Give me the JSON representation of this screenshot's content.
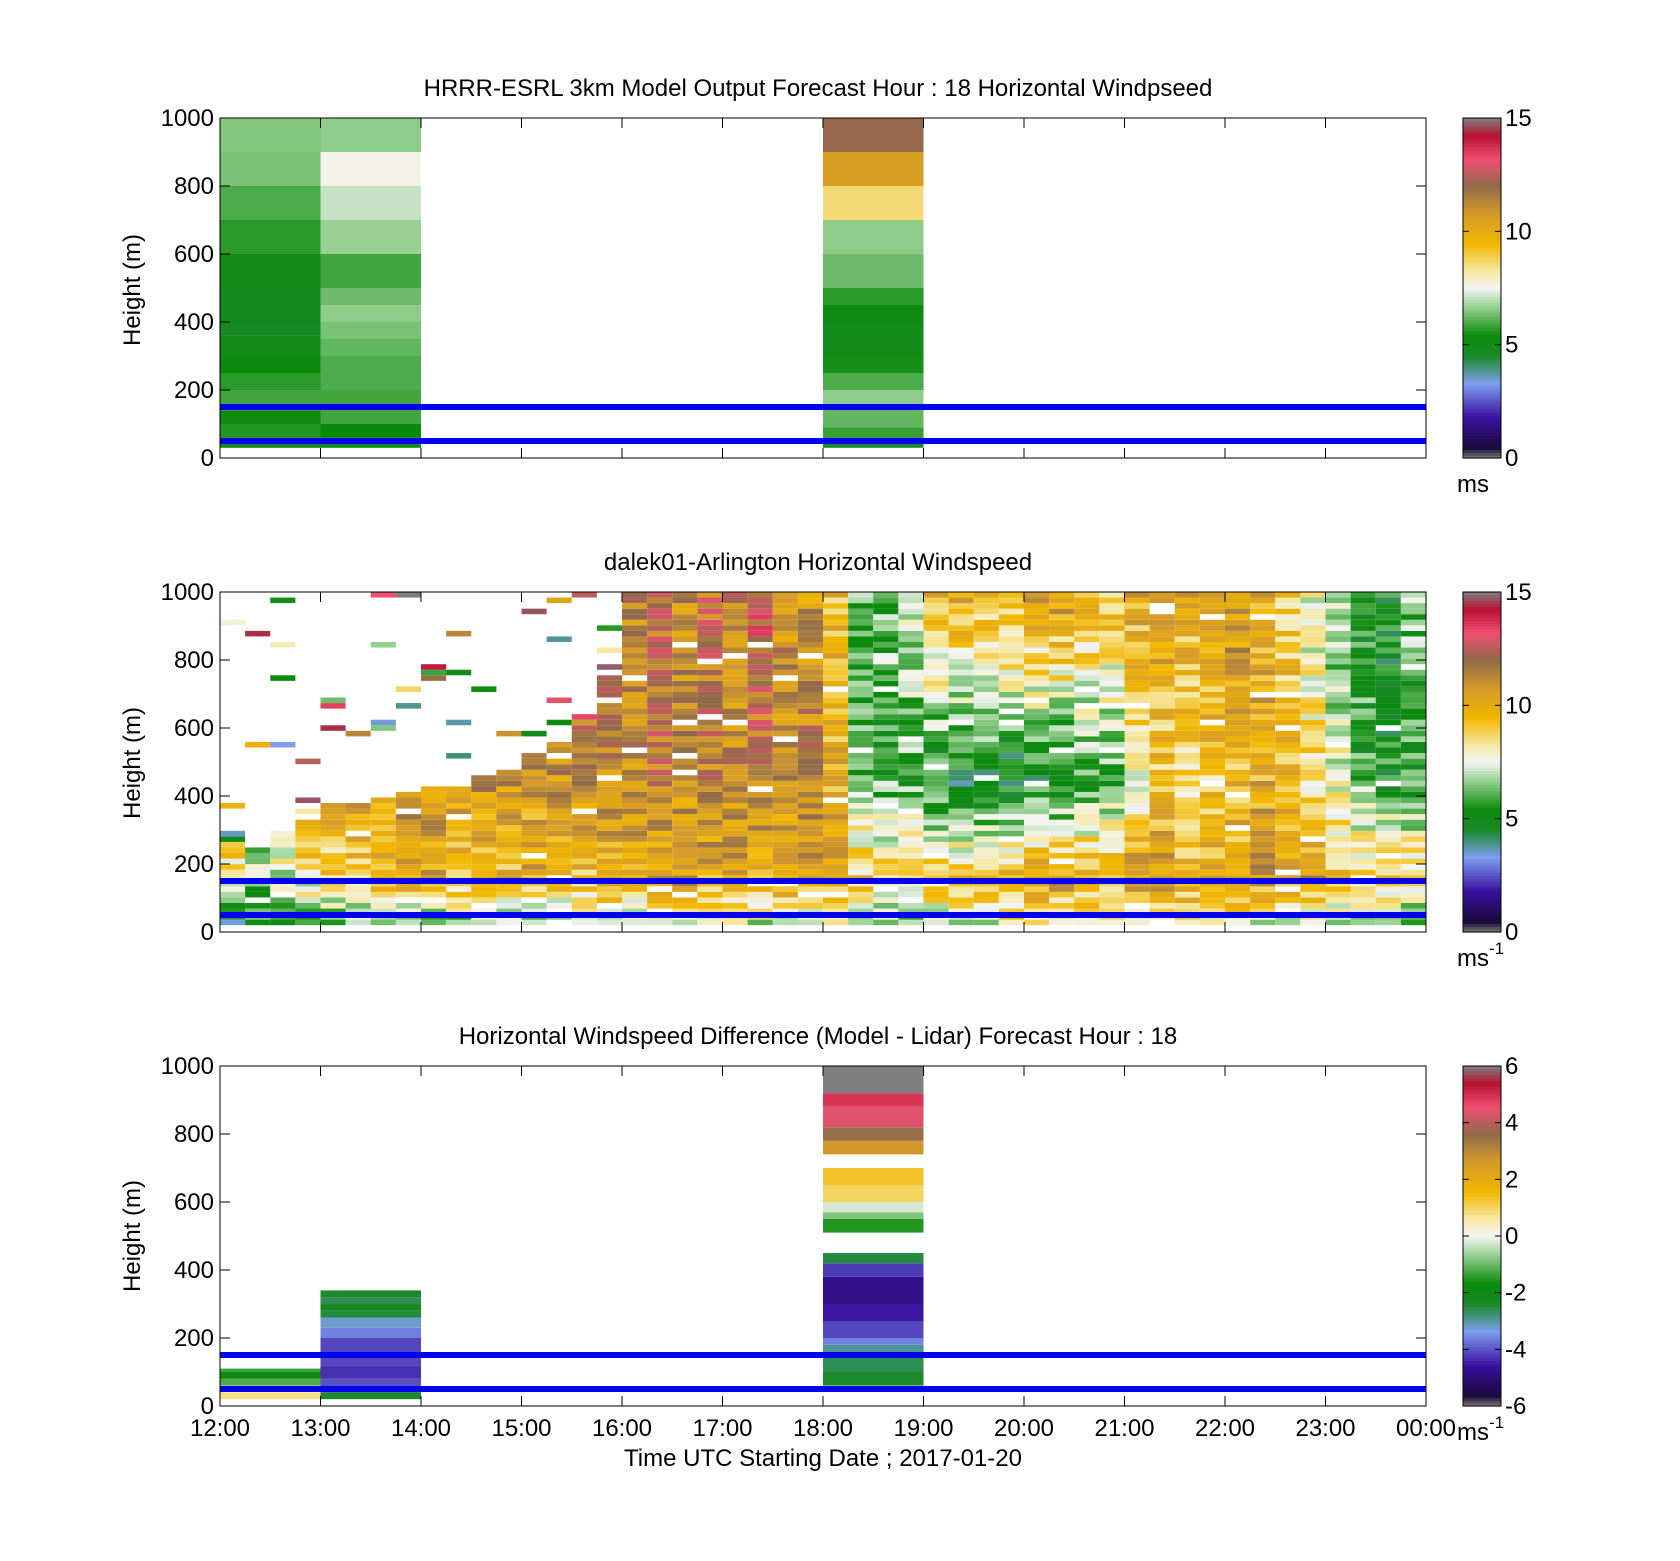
{
  "figure": {
    "xlabel": "Time UTC  Starting Date ; 2017-01-20",
    "x_ticks": [
      "12:00",
      "13:00",
      "14:00",
      "15:00",
      "16:00",
      "17:00",
      "18:00",
      "19:00",
      "20:00",
      "21:00",
      "22:00",
      "23:00",
      "00:00"
    ]
  },
  "colormap": {
    "name": "windspeed",
    "stops": [
      {
        "f": 0.0,
        "color": "#7f7f7f"
      },
      {
        "f": 0.03,
        "color": "#1a0a3a"
      },
      {
        "f": 0.12,
        "color": "#3a10a0"
      },
      {
        "f": 0.22,
        "color": "#7d9ef0"
      },
      {
        "f": 0.3,
        "color": "#1b8a2a"
      },
      {
        "f": 0.36,
        "color": "#0a8a0a"
      },
      {
        "f": 0.45,
        "color": "#9ed49a"
      },
      {
        "f": 0.5,
        "color": "#f3f3f3"
      },
      {
        "f": 0.55,
        "color": "#f5e9a6"
      },
      {
        "f": 0.63,
        "color": "#f2b700"
      },
      {
        "f": 0.72,
        "color": "#d49a2a"
      },
      {
        "f": 0.8,
        "color": "#8f6a4a"
      },
      {
        "f": 0.88,
        "color": "#ef4f70"
      },
      {
        "f": 0.95,
        "color": "#b81030"
      },
      {
        "f": 1.0,
        "color": "#7f7f7f"
      }
    ]
  },
  "reference_lines": {
    "heights_m": [
      50,
      150
    ],
    "color": "#0000ee"
  },
  "chart_data": [
    {
      "type": "heatmap",
      "title": "HRRR-ESRL 3km Model Output   Forecast Hour : 18 Horizontal Windpseed",
      "ylabel": "Height (m)",
      "xlim": [
        0,
        12
      ],
      "ylim": [
        0,
        1000
      ],
      "y_ticks": [
        "0",
        "200",
        "400",
        "600",
        "800",
        "1000"
      ],
      "colorbar": {
        "min": 0,
        "max": 15,
        "ticks": [
          "0",
          "5",
          "10",
          "15"
        ],
        "unit": "ms",
        "unit_sup": ""
      },
      "columns": [
        {
          "t0": 0,
          "t1": 1,
          "cells": [
            {
              "h0": 30,
              "h1": 60,
              "v": 4.9
            },
            {
              "h0": 60,
              "h1": 100,
              "v": 5.6
            },
            {
              "h0": 100,
              "h1": 140,
              "v": 5.2
            },
            {
              "h0": 140,
              "h1": 200,
              "v": 5.9
            },
            {
              "h0": 200,
              "h1": 250,
              "v": 5.7
            },
            {
              "h0": 250,
              "h1": 300,
              "v": 5.3
            },
            {
              "h0": 300,
              "h1": 360,
              "v": 5.0
            },
            {
              "h0": 360,
              "h1": 400,
              "v": 4.7
            },
            {
              "h0": 400,
              "h1": 500,
              "v": 4.8
            },
            {
              "h0": 500,
              "h1": 600,
              "v": 5.0
            },
            {
              "h0": 600,
              "h1": 700,
              "v": 5.7
            },
            {
              "h0": 700,
              "h1": 800,
              "v": 6.0
            },
            {
              "h0": 800,
              "h1": 900,
              "v": 6.4
            },
            {
              "h0": 900,
              "h1": 1000,
              "v": 6.5
            }
          ]
        },
        {
          "t0": 1,
          "t1": 2,
          "cells": [
            {
              "h0": 30,
              "h1": 60,
              "v": 4.9
            },
            {
              "h0": 60,
              "h1": 100,
              "v": 5.4
            },
            {
              "h0": 100,
              "h1": 200,
              "v": 5.9
            },
            {
              "h0": 200,
              "h1": 300,
              "v": 6.0
            },
            {
              "h0": 300,
              "h1": 350,
              "v": 6.2
            },
            {
              "h0": 350,
              "h1": 400,
              "v": 6.4
            },
            {
              "h0": 400,
              "h1": 450,
              "v": 6.6
            },
            {
              "h0": 450,
              "h1": 500,
              "v": 6.3
            },
            {
              "h0": 500,
              "h1": 600,
              "v": 5.9
            },
            {
              "h0": 600,
              "h1": 700,
              "v": 6.7
            },
            {
              "h0": 700,
              "h1": 800,
              "v": 7.1
            },
            {
              "h0": 800,
              "h1": 900,
              "v": 7.6
            },
            {
              "h0": 900,
              "h1": 1000,
              "v": 6.6
            }
          ]
        },
        {
          "t0": 6,
          "t1": 7,
          "cells": [
            {
              "h0": 30,
              "h1": 50,
              "v": 4.6
            },
            {
              "h0": 50,
              "h1": 90,
              "v": 5.8
            },
            {
              "h0": 90,
              "h1": 150,
              "v": 6.2
            },
            {
              "h0": 150,
              "h1": 200,
              "v": 6.6
            },
            {
              "h0": 200,
              "h1": 250,
              "v": 6.0
            },
            {
              "h0": 250,
              "h1": 300,
              "v": 5.5
            },
            {
              "h0": 300,
              "h1": 400,
              "v": 4.9
            },
            {
              "h0": 400,
              "h1": 450,
              "v": 5.2
            },
            {
              "h0": 450,
              "h1": 500,
              "v": 5.7
            },
            {
              "h0": 500,
              "h1": 600,
              "v": 6.3
            },
            {
              "h0": 600,
              "h1": 700,
              "v": 6.6
            },
            {
              "h0": 700,
              "h1": 800,
              "v": 8.6
            },
            {
              "h0": 800,
              "h1": 900,
              "v": 10.6
            },
            {
              "h0": 900,
              "h1": 1000,
              "v": 12.1
            }
          ]
        }
      ]
    },
    {
      "type": "heatmap",
      "title": "dalek01-Arlington  Horizontal Windspeed",
      "ylabel": "Height (m)",
      "xlim": [
        0,
        12
      ],
      "ylim": [
        0,
        1000
      ],
      "y_ticks": [
        "0",
        "200",
        "400",
        "600",
        "800",
        "1000"
      ],
      "colorbar": {
        "min": 0,
        "max": 15,
        "ticks": [
          "0",
          "5",
          "10",
          "15"
        ],
        "unit": "ms",
        "unit_sup": "-1"
      },
      "time_step_h": 0.25,
      "profiles": [
        {
          "t": 0.0,
          "top": 300,
          "v": [
            4.5,
            5.0,
            7.5,
            9.0,
            1.0
          ]
        },
        {
          "t": 0.25,
          "top": 250,
          "v": [
            5.0,
            6.5,
            8.5,
            9.5
          ]
        },
        {
          "t": 0.5,
          "top": 300,
          "v": [
            5.0,
            7.0,
            9.5,
            10.0
          ]
        },
        {
          "t": 0.75,
          "top": 330,
          "v": [
            5.5,
            8.0,
            10.5,
            10.0
          ]
        },
        {
          "t": 1.0,
          "top": 370,
          "v": [
            5.2,
            8.5,
            10.5,
            9.5
          ]
        },
        {
          "t": 1.25,
          "top": 370,
          "v": [
            5.2,
            9.0,
            10.8,
            10.0
          ]
        },
        {
          "t": 1.5,
          "top": 390,
          "v": [
            5.5,
            9.5,
            10.5,
            10.0
          ]
        },
        {
          "t": 1.75,
          "top": 400,
          "v": [
            5.8,
            10.0,
            11.0,
            10.5
          ]
        },
        {
          "t": 2.0,
          "top": 420,
          "v": [
            5.0,
            10.0,
            11.0,
            10.0
          ]
        },
        {
          "t": 2.25,
          "top": 420,
          "v": [
            5.5,
            9.5,
            10.5,
            9.5
          ]
        },
        {
          "t": 2.5,
          "top": 450,
          "v": [
            6.0,
            9.5,
            11.0,
            10.5
          ]
        },
        {
          "t": 2.75,
          "top": 470,
          "v": [
            6.5,
            9.5,
            11.0,
            12.5
          ]
        },
        {
          "t": 3.0,
          "top": 520,
          "v": [
            6.0,
            10.0,
            10.5,
            14.0
          ]
        },
        {
          "t": 3.25,
          "top": 560,
          "v": [
            6.0,
            9.5,
            11.0,
            13.5
          ]
        },
        {
          "t": 3.5,
          "top": 620,
          "v": [
            6.0,
            9.5,
            11.0,
            13.0
          ]
        },
        {
          "t": 3.75,
          "top": 750,
          "v": [
            6.0,
            10.0,
            11.0,
            12.0
          ]
        },
        {
          "t": 4.0,
          "top": 1000,
          "v": [
            6.0,
            10.0,
            11.0,
            11.5
          ]
        },
        {
          "t": 4.25,
          "top": 1000,
          "v": [
            6.5,
            10.0,
            11.5,
            12.0
          ]
        },
        {
          "t": 4.5,
          "top": 1000,
          "v": [
            6.0,
            10.5,
            11.0,
            11.0
          ]
        },
        {
          "t": 4.75,
          "top": 1000,
          "v": [
            6.5,
            10.0,
            11.5,
            12.0
          ]
        },
        {
          "t": 5.0,
          "top": 1000,
          "v": [
            6.5,
            10.5,
            11.0,
            11.5
          ]
        },
        {
          "t": 5.25,
          "top": 1000,
          "v": [
            6.5,
            10.0,
            11.5,
            12.5
          ]
        },
        {
          "t": 5.5,
          "top": 1000,
          "v": [
            6.5,
            10.5,
            11.0,
            11.0
          ]
        },
        {
          "t": 5.75,
          "top": 1000,
          "v": [
            6.0,
            10.0,
            11.5,
            10.5
          ]
        },
        {
          "t": 6.0,
          "top": 1000,
          "v": [
            7.5,
            10.0,
            10.0,
            9.5
          ]
        },
        {
          "t": 6.25,
          "top": 1000,
          "v": [
            6.0,
            9.0,
            6.5,
            6.0
          ]
        },
        {
          "t": 6.5,
          "top": 1000,
          "v": [
            6.0,
            9.0,
            6.0,
            6.5
          ]
        },
        {
          "t": 6.75,
          "top": 1000,
          "v": [
            5.5,
            9.0,
            6.0,
            7.0
          ]
        },
        {
          "t": 7.0,
          "top": 1000,
          "v": [
            6.5,
            9.5,
            5.0,
            10.0
          ]
        },
        {
          "t": 7.25,
          "top": 1000,
          "v": [
            6.5,
            9.5,
            4.5,
            10.5
          ]
        },
        {
          "t": 7.5,
          "top": 1000,
          "v": [
            7.0,
            9.0,
            5.0,
            9.5
          ]
        },
        {
          "t": 7.75,
          "top": 1000,
          "v": [
            7.5,
            10.0,
            4.5,
            10.0
          ]
        },
        {
          "t": 8.0,
          "top": 1000,
          "v": [
            7.5,
            10.5,
            5.0,
            10.5
          ]
        },
        {
          "t": 8.25,
          "top": 1000,
          "v": [
            7.0,
            10.5,
            4.5,
            11.0
          ]
        },
        {
          "t": 8.5,
          "top": 1000,
          "v": [
            7.0,
            10.0,
            5.5,
            10.0
          ]
        },
        {
          "t": 8.75,
          "top": 1000,
          "v": [
            7.5,
            9.5,
            6.0,
            9.5
          ]
        },
        {
          "t": 9.0,
          "top": 1000,
          "v": [
            7.0,
            10.5,
            8.0,
            10.0
          ]
        },
        {
          "t": 9.25,
          "top": 1000,
          "v": [
            7.0,
            10.5,
            9.0,
            10.5
          ]
        },
        {
          "t": 9.5,
          "top": 1000,
          "v": [
            7.5,
            10.0,
            8.5,
            10.0
          ]
        },
        {
          "t": 9.75,
          "top": 1000,
          "v": [
            7.0,
            10.0,
            9.0,
            10.5
          ]
        },
        {
          "t": 10.0,
          "top": 1000,
          "v": [
            7.5,
            10.0,
            9.5,
            11.0
          ]
        },
        {
          "t": 10.25,
          "top": 1000,
          "v": [
            6.5,
            10.5,
            10.0,
            10.0
          ]
        },
        {
          "t": 10.5,
          "top": 1000,
          "v": [
            7.0,
            10.0,
            9.5,
            9.0
          ]
        },
        {
          "t": 10.75,
          "top": 1000,
          "v": [
            7.0,
            10.5,
            8.5,
            7.5
          ]
        },
        {
          "t": 11.0,
          "top": 1000,
          "v": [
            6.5,
            9.5,
            7.5,
            6.5
          ]
        },
        {
          "t": 11.25,
          "top": 1000,
          "v": [
            5.5,
            9.0,
            6.0,
            5.5
          ]
        },
        {
          "t": 11.5,
          "top": 1000,
          "v": [
            5.0,
            9.5,
            5.5,
            5.0
          ]
        },
        {
          "t": 11.75,
          "top": 1000,
          "v": [
            5.0,
            9.0,
            5.5,
            6.5
          ]
        }
      ]
    },
    {
      "type": "heatmap",
      "title": "Horizontal Windspeed Difference (Model - Lidar) Forecast Hour : 18",
      "ylabel": "Height (m)",
      "xlim": [
        0,
        12
      ],
      "ylim": [
        0,
        1000
      ],
      "y_ticks": [
        "0",
        "200",
        "400",
        "600",
        "800",
        "1000"
      ],
      "colorbar": {
        "min": -6,
        "max": 6,
        "ticks": [
          "-6",
          "-4",
          "-2",
          "0",
          "2",
          "4",
          "6"
        ],
        "unit": "ms",
        "unit_sup": "-1"
      },
      "columns": [
        {
          "t0": 0,
          "t1": 1,
          "cells": [
            {
              "h0": 20,
              "h1": 40,
              "v": 0.8
            },
            {
              "h0": 40,
              "h1": 60,
              "v": 0.1
            },
            {
              "h0": 60,
              "h1": 80,
              "v": -1.2
            },
            {
              "h0": 80,
              "h1": 100,
              "v": -1.8
            },
            {
              "h0": 100,
              "h1": 110,
              "v": -1.3
            }
          ]
        },
        {
          "t0": 1,
          "t1": 2,
          "cells": [
            {
              "h0": 20,
              "h1": 40,
              "v": -2.4
            },
            {
              "h0": 40,
              "h1": 80,
              "v": -4.0
            },
            {
              "h0": 80,
              "h1": 120,
              "v": -4.3
            },
            {
              "h0": 120,
              "h1": 200,
              "v": -4.1
            },
            {
              "h0": 200,
              "h1": 230,
              "v": -3.6
            },
            {
              "h0": 230,
              "h1": 260,
              "v": -3.2
            },
            {
              "h0": 260,
              "h1": 280,
              "v": -2.5
            },
            {
              "h0": 280,
              "h1": 300,
              "v": -2.2
            },
            {
              "h0": 300,
              "h1": 320,
              "v": -2.6
            },
            {
              "h0": 320,
              "h1": 340,
              "v": -2.3
            }
          ]
        },
        {
          "t0": 6,
          "t1": 7,
          "cells": [
            {
              "h0": 60,
              "h1": 100,
              "v": -2.4
            },
            {
              "h0": 100,
              "h1": 150,
              "v": -2.6
            },
            {
              "h0": 150,
              "h1": 180,
              "v": -2.9
            },
            {
              "h0": 180,
              "h1": 200,
              "v": -3.6
            },
            {
              "h0": 200,
              "h1": 250,
              "v": -4.1
            },
            {
              "h0": 250,
              "h1": 300,
              "v": -4.5
            },
            {
              "h0": 300,
              "h1": 380,
              "v": -4.8
            },
            {
              "h0": 380,
              "h1": 420,
              "v": -4.2
            },
            {
              "h0": 420,
              "h1": 450,
              "v": -2.5
            },
            {
              "h0": 510,
              "h1": 550,
              "v": -1.5
            },
            {
              "h0": 550,
              "h1": 570,
              "v": -0.8
            },
            {
              "h0": 570,
              "h1": 600,
              "v": -0.2
            },
            {
              "h0": 600,
              "h1": 650,
              "v": 1.0
            },
            {
              "h0": 650,
              "h1": 700,
              "v": 1.3
            },
            {
              "h0": 740,
              "h1": 780,
              "v": 2.7
            },
            {
              "h0": 780,
              "h1": 820,
              "v": 3.5
            },
            {
              "h0": 820,
              "h1": 880,
              "v": 4.4
            },
            {
              "h0": 880,
              "h1": 920,
              "v": 4.9
            },
            {
              "h0": 920,
              "h1": 1000,
              "v": 6.0
            }
          ]
        }
      ]
    }
  ]
}
